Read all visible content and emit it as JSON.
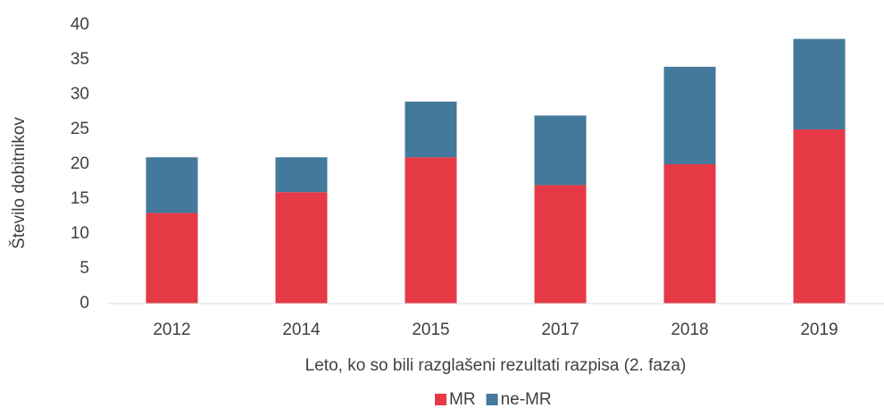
{
  "chart_data": {
    "type": "stacked_bar",
    "y_label": "Število dobitnikov",
    "x_label": "Leto, ko so bili razglašeni rezultati razpisa (2. faza)",
    "categories": [
      "2012",
      "2014",
      "2015",
      "2017",
      "2018",
      "2019"
    ],
    "series": [
      {
        "name": "MR",
        "color": "#e63946",
        "values": [
          13,
          16,
          21,
          17,
          20,
          25
        ]
      },
      {
        "name": "ne-MR",
        "color": "#43799b",
        "values": [
          8,
          5,
          8,
          10,
          14,
          13
        ]
      }
    ],
    "ylim": [
      0,
      40
    ],
    "yticks": [
      0,
      5,
      10,
      15,
      20,
      25,
      30,
      35,
      40
    ],
    "grid": false,
    "legend": "bottom"
  }
}
